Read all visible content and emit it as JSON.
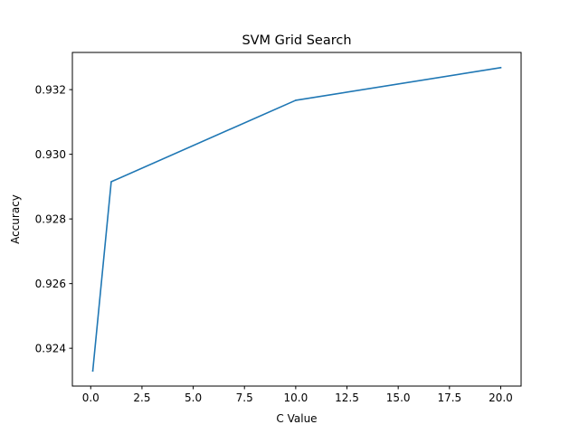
{
  "chart_data": {
    "type": "line",
    "title": "SVM Grid Search",
    "xlabel": "C Value",
    "ylabel": "Accuracy",
    "x": [
      0.1,
      1,
      10,
      20
    ],
    "series": [
      {
        "values": [
          0.9233,
          0.92915,
          0.93167,
          0.93268
        ],
        "color": "#1f77b4"
      }
    ],
    "xlim": [
      -0.895,
      20.995
    ],
    "ylim": [
      0.92283,
      0.93315
    ],
    "xticks": [
      0.0,
      2.5,
      5.0,
      7.5,
      10.0,
      12.5,
      15.0,
      17.5,
      20.0
    ],
    "xtick_labels": [
      "0.0",
      "2.5",
      "5.0",
      "7.5",
      "10.0",
      "12.5",
      "15.0",
      "17.5",
      "20.0"
    ],
    "yticks": [
      0.924,
      0.926,
      0.928,
      0.93,
      0.932
    ],
    "ytick_labels": [
      "0.924",
      "0.926",
      "0.928",
      "0.930",
      "0.932"
    ],
    "grid": false,
    "legend": "none"
  }
}
